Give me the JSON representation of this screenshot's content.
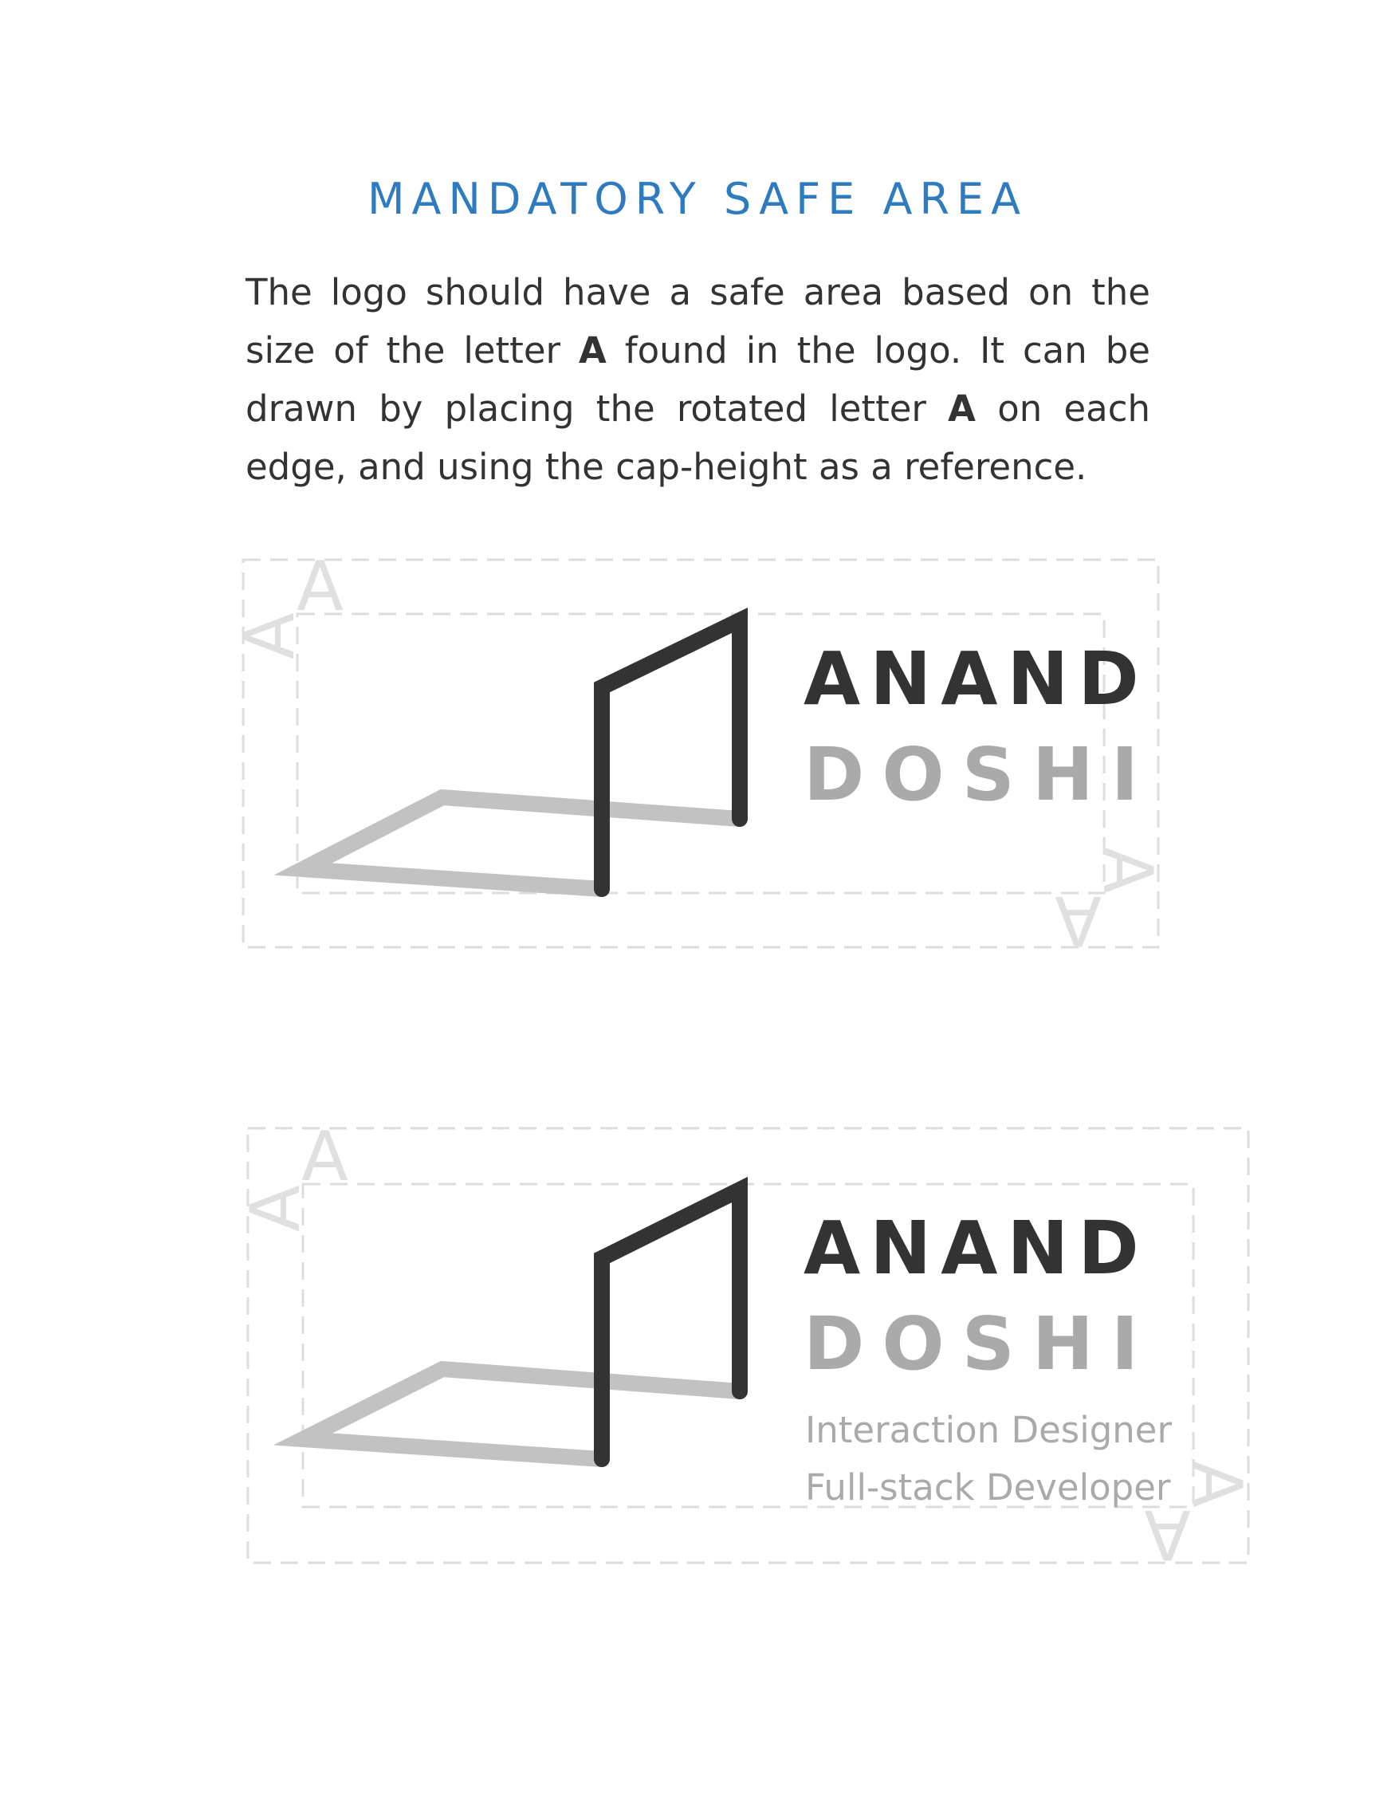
{
  "heading": "MANDATORY SAFE AREA",
  "intro": {
    "part1": "The logo should have a safe area based on the size of the letter ",
    "letter1": "A",
    "part2": " found in the logo. It can be drawn by placing the rotated letter ",
    "letter2": "A",
    "part3": " on each edge, and using the cap-height as a reference."
  },
  "safe_area_marker": "A",
  "logo": {
    "first_name": "ANAND",
    "last_name": "DOSHI",
    "tagline_1": "Interaction Designer",
    "tagline_2": "Full-stack Developer"
  },
  "colors": {
    "heading": "#2e7bc0",
    "body_text": "#333333",
    "logo_dark": "#333333",
    "logo_light": "#c2c2c2",
    "last_name": "#aaaaaa",
    "guides": "#dddddd"
  },
  "figures": [
    {
      "variant": "logo-with-name"
    },
    {
      "variant": "logo-with-name-and-tagline"
    }
  ]
}
